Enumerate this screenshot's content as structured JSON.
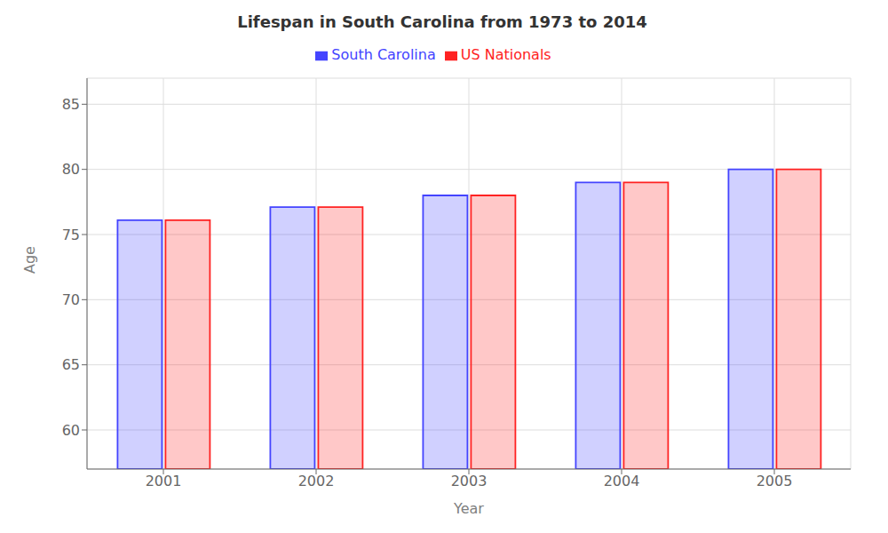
{
  "chart_data": {
    "type": "bar",
    "title": "Lifespan in South Carolina from 1973 to 2014",
    "xlabel": "Year",
    "ylabel": "Age",
    "categories": [
      "2001",
      "2002",
      "2003",
      "2004",
      "2005"
    ],
    "series": [
      {
        "name": "South Carolina",
        "color": "#4444ff",
        "values": [
          76.1,
          77.1,
          78.0,
          79.0,
          80.0
        ]
      },
      {
        "name": "US Nationals",
        "color": "#ff2222",
        "values": [
          76.1,
          77.1,
          78.0,
          79.0,
          80.0
        ]
      }
    ],
    "ylim": [
      57,
      87
    ],
    "yticks": [
      60,
      65,
      70,
      75,
      80,
      85
    ],
    "grid": true,
    "legend": "top"
  }
}
